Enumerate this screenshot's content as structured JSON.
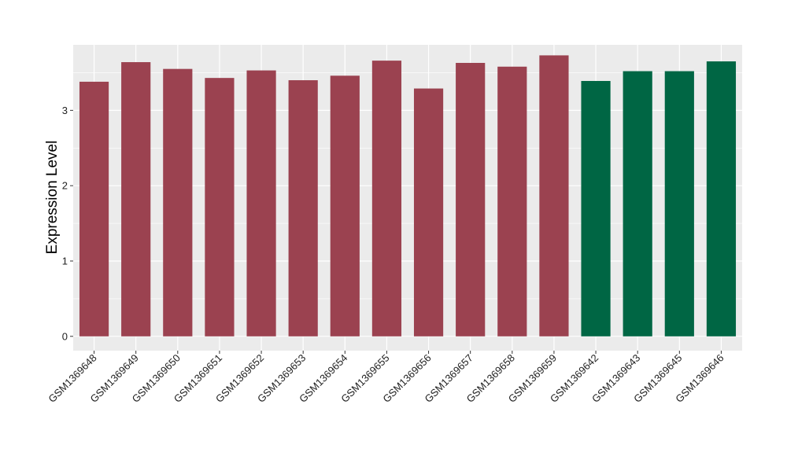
{
  "chart_data": {
    "type": "bar",
    "title": "",
    "xlabel": "",
    "ylabel": "Expression Level",
    "ylim": [
      -0.19,
      3.87
    ],
    "yticks": [
      0,
      1,
      2,
      3
    ],
    "grid": true,
    "legend": "none",
    "categories": [
      "GSM1369648",
      "GSM1369649",
      "GSM1369650",
      "GSM1369651",
      "GSM1369652",
      "GSM1369653",
      "GSM1369654",
      "GSM1369655",
      "GSM1369656",
      "GSM1369657",
      "GSM1369658",
      "GSM1369659",
      "GSM1369642",
      "GSM1369643",
      "GSM1369645",
      "GSM1369646"
    ],
    "values": [
      3.38,
      3.64,
      3.55,
      3.43,
      3.53,
      3.4,
      3.46,
      3.66,
      3.29,
      3.63,
      3.58,
      3.73,
      3.39,
      3.52,
      3.52,
      3.65
    ],
    "groups": [
      "a",
      "a",
      "a",
      "a",
      "a",
      "a",
      "a",
      "a",
      "a",
      "a",
      "a",
      "a",
      "b",
      "b",
      "b",
      "b"
    ],
    "colors": {
      "a": "#9b4250",
      "b": "#006644"
    },
    "panel_background": "#ebebeb",
    "grid_color": "#ffffff"
  }
}
